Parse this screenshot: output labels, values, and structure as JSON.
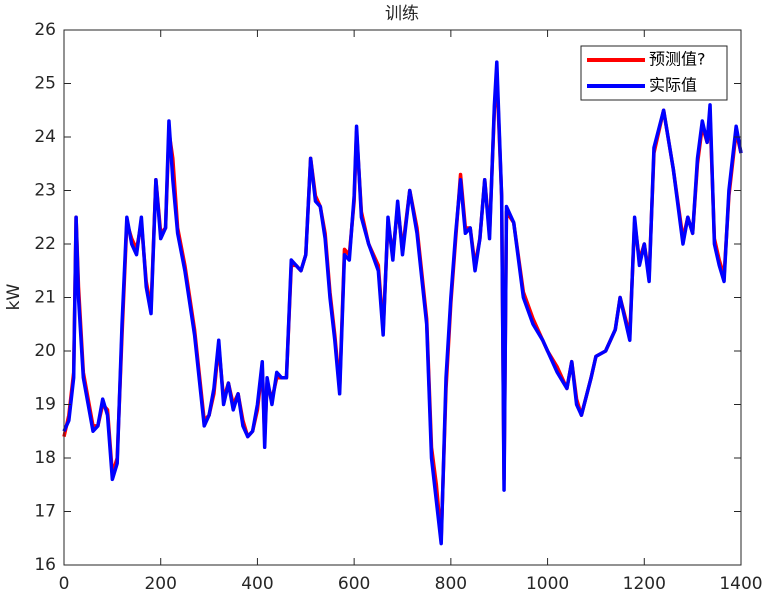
{
  "chart_data": {
    "type": "line",
    "title": "训练",
    "ylabel": "kW",
    "x": [
      0,
      10,
      20,
      25,
      30,
      40,
      50,
      60,
      70,
      80,
      90,
      100,
      110,
      120,
      130,
      140,
      150,
      160,
      170,
      180,
      190,
      200,
      210,
      217,
      225,
      235,
      250,
      270,
      290,
      300,
      310,
      320,
      330,
      340,
      350,
      360,
      370,
      380,
      390,
      400,
      410,
      415,
      420,
      430,
      440,
      450,
      460,
      470,
      480,
      490,
      500,
      510,
      520,
      530,
      540,
      550,
      560,
      570,
      580,
      590,
      600,
      605,
      615,
      630,
      650,
      660,
      670,
      680,
      690,
      700,
      715,
      730,
      750,
      760,
      770,
      780,
      790,
      800,
      810,
      820,
      830,
      840,
      850,
      860,
      870,
      880,
      890,
      895,
      905,
      910,
      915,
      930,
      950,
      970,
      990,
      1000,
      1020,
      1040,
      1050,
      1060,
      1070,
      1090,
      1100,
      1120,
      1140,
      1150,
      1170,
      1180,
      1190,
      1200,
      1210,
      1220,
      1240,
      1260,
      1280,
      1290,
      1300,
      1310,
      1320,
      1330,
      1336,
      1345,
      1355,
      1365,
      1375,
      1390,
      1400
    ],
    "series": [
      {
        "name": "预测值?",
        "color": "#ff0000",
        "values": [
          18.4,
          18.8,
          19.6,
          22.5,
          21.2,
          19.6,
          19.1,
          18.6,
          18.6,
          19.0,
          18.9,
          17.7,
          18.0,
          20.3,
          22.4,
          22.1,
          21.9,
          22.4,
          21.3,
          20.8,
          23.2,
          22.2,
          22.3,
          24.1,
          23.6,
          22.3,
          21.6,
          20.4,
          18.7,
          18.8,
          19.2,
          20.1,
          19.1,
          19.4,
          19.0,
          19.2,
          18.7,
          18.4,
          18.5,
          18.9,
          19.7,
          18.4,
          19.4,
          19.1,
          19.5,
          19.5,
          19.5,
          21.6,
          21.6,
          21.5,
          21.8,
          23.6,
          22.9,
          22.7,
          22.2,
          21.1,
          20.3,
          19.3,
          21.9,
          21.8,
          22.8,
          24.1,
          22.6,
          22.0,
          21.6,
          20.4,
          22.4,
          21.8,
          22.7,
          21.9,
          23.0,
          22.3,
          20.6,
          18.2,
          17.5,
          16.5,
          19.3,
          20.9,
          22.1,
          23.3,
          22.3,
          22.3,
          21.6,
          22.1,
          23.2,
          22.2,
          24.5,
          25.2,
          22.9,
          17.6,
          22.6,
          22.4,
          21.1,
          20.6,
          20.2,
          20.0,
          19.7,
          19.3,
          19.8,
          19.1,
          18.8,
          19.5,
          19.9,
          20.0,
          20.4,
          21.0,
          20.3,
          22.4,
          21.7,
          22.0,
          21.4,
          23.7,
          24.5,
          23.4,
          22.1,
          22.5,
          22.2,
          23.5,
          24.2,
          23.9,
          24.4,
          22.1,
          21.7,
          21.4,
          22.9,
          24.1,
          23.7
        ]
      },
      {
        "name": "实际值",
        "color": "#0000ff",
        "values": [
          18.5,
          18.7,
          19.5,
          22.5,
          21.0,
          19.5,
          19.0,
          18.5,
          18.6,
          19.1,
          18.8,
          17.6,
          17.9,
          20.5,
          22.5,
          22.0,
          21.8,
          22.5,
          21.2,
          20.7,
          23.2,
          22.1,
          22.3,
          24.3,
          23.2,
          22.2,
          21.5,
          20.3,
          18.6,
          18.8,
          19.3,
          20.2,
          19.0,
          19.4,
          18.9,
          19.2,
          18.6,
          18.4,
          18.5,
          19.0,
          19.8,
          18.2,
          19.5,
          19.0,
          19.6,
          19.5,
          19.5,
          21.7,
          21.6,
          21.5,
          21.8,
          23.6,
          22.8,
          22.7,
          22.1,
          21.0,
          20.2,
          19.2,
          21.8,
          21.7,
          22.9,
          24.2,
          22.5,
          22.0,
          21.5,
          20.3,
          22.5,
          21.7,
          22.8,
          21.8,
          23.0,
          22.2,
          20.5,
          18.0,
          17.2,
          16.4,
          19.5,
          21.0,
          22.2,
          23.2,
          22.2,
          22.3,
          21.5,
          22.1,
          23.2,
          22.1,
          24.6,
          25.4,
          22.9,
          17.4,
          22.7,
          22.4,
          21.0,
          20.5,
          20.2,
          20.0,
          19.6,
          19.3,
          19.8,
          19.0,
          18.8,
          19.5,
          19.9,
          20.0,
          20.4,
          21.0,
          20.2,
          22.5,
          21.6,
          22.0,
          21.3,
          23.8,
          24.5,
          23.4,
          22.0,
          22.5,
          22.2,
          23.6,
          24.3,
          23.9,
          24.6,
          22.0,
          21.6,
          21.3,
          23.0,
          24.2,
          23.7
        ]
      }
    ],
    "xlim": [
      0,
      1400
    ],
    "xticks": [
      0,
      200,
      400,
      600,
      800,
      1000,
      1200,
      1400
    ],
    "ylim": [
      16,
      26
    ],
    "yticks": [
      16,
      17,
      18,
      19,
      20,
      21,
      22,
      23,
      24,
      25,
      26
    ],
    "legend": "northeast"
  }
}
